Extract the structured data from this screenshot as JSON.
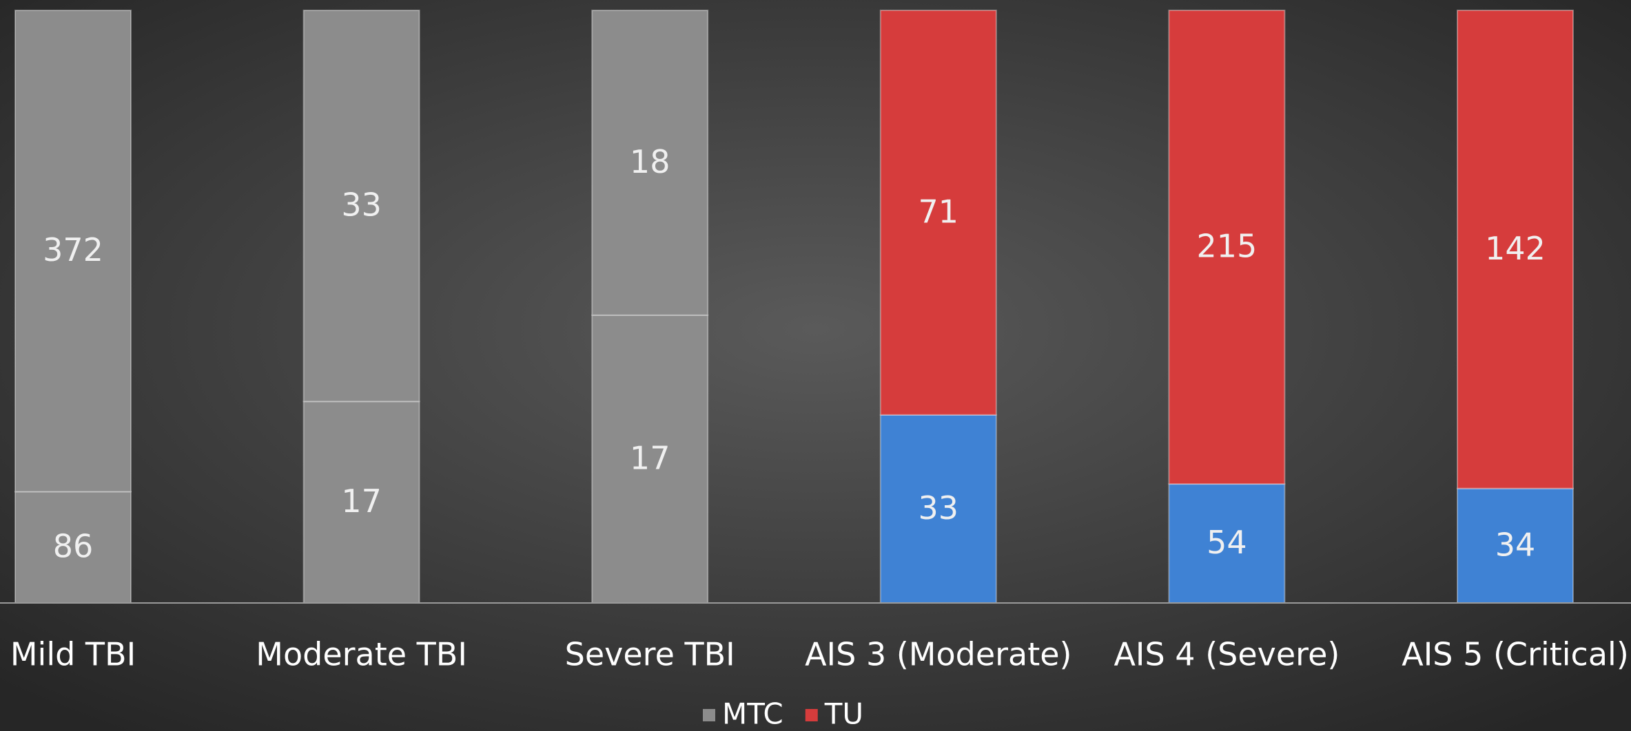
{
  "chart_data": {
    "type": "stacked_percent_bar",
    "categories": [
      "Mild TBI",
      "Moderate TBI",
      "Severe TBI",
      "AIS 3 (Moderate)",
      "AIS 4 (Severe)",
      "AIS 5 (Critical)"
    ],
    "series": [
      {
        "name": "MTC",
        "color": "#8c8c8c",
        "colors": [
          "#8c8c8c",
          "#8c8c8c",
          "#8c8c8c",
          "#3f82d4",
          "#3f82d4",
          "#3f82d4"
        ],
        "values": [
          86,
          17,
          17,
          33,
          54,
          34
        ]
      },
      {
        "name": "TU",
        "color": "#d63c3c",
        "colors": [
          "#8c8c8c",
          "#8c8c8c",
          "#8c8c8c",
          "#d63c3c",
          "#d63c3c",
          "#d63c3c"
        ],
        "values": [
          372,
          33,
          18,
          71,
          215,
          142
        ]
      }
    ],
    "legend": "bottom"
  }
}
